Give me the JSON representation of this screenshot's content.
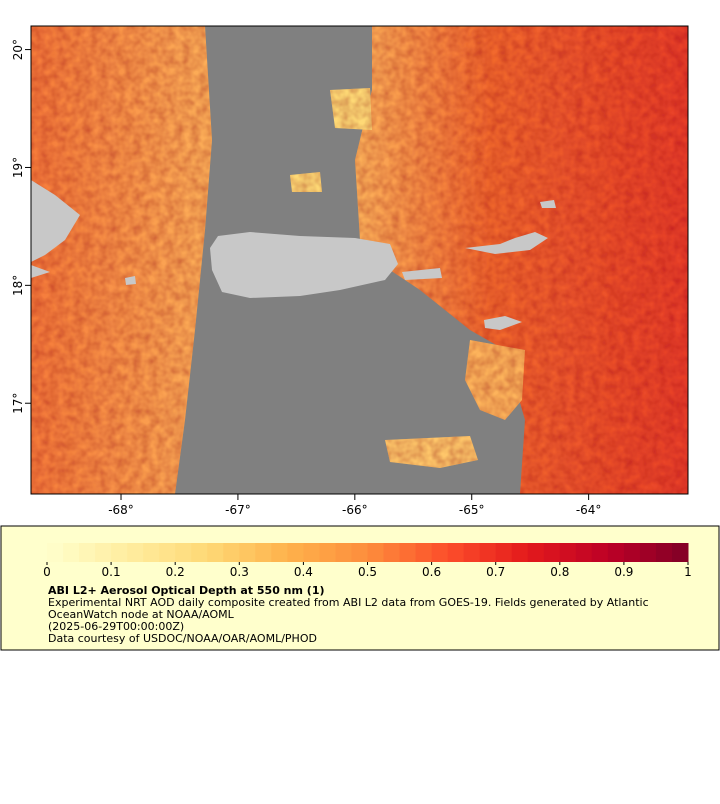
{
  "map": {
    "xlim": [
      -68.77,
      -63.15
    ],
    "ylim": [
      16.23,
      20.2
    ],
    "lon_ticks": [
      {
        "value": -68,
        "label": "-68°"
      },
      {
        "value": -67,
        "label": "-67°"
      },
      {
        "value": -66,
        "label": "-66°"
      },
      {
        "value": -65,
        "label": "-65°"
      },
      {
        "value": -64,
        "label": "-64°"
      }
    ],
    "lat_ticks": [
      {
        "value": 17,
        "label": "17°"
      },
      {
        "value": 18,
        "label": "18°"
      },
      {
        "value": 19,
        "label": "19°"
      },
      {
        "value": 20,
        "label": "20°"
      }
    ]
  },
  "legend": {
    "lim": [
      0,
      1
    ],
    "ticks": [
      0,
      0.1,
      0.2,
      0.3,
      0.4,
      0.5,
      0.6,
      0.7,
      0.8,
      0.9,
      1
    ],
    "colormap": [
      "#ffffcc",
      "#ffeda0",
      "#fed976",
      "#feb24c",
      "#fd8d3c",
      "#fc4e2a",
      "#e31a1c",
      "#bd0026",
      "#800026"
    ],
    "title": "ABI L2+ Aerosol Optical Depth at 550 nm (1)",
    "lines": [
      "Experimental NRT AOD daily composite created from ABI L2 data from GOES-19. Fields generated by Atlantic",
      "OceanWatch node at NOAA/AOML",
      "(2025-06-29T00:00:00Z)",
      "Data courtesy of USDOC/NOAA/OAR/AOML/PHOD"
    ]
  }
}
